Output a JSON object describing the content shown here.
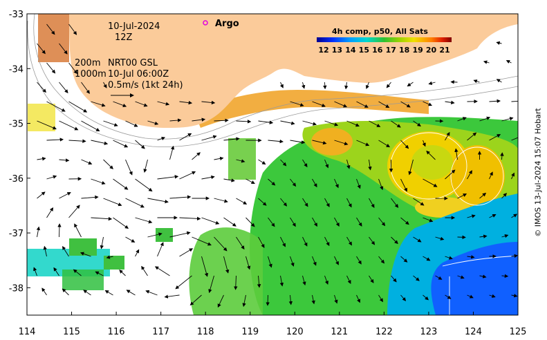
{
  "map": {
    "date_label": "10-Jul-2024",
    "time_label": "12Z",
    "argo_label": "Argo",
    "depth_label_1": "200m",
    "depth_label_2": "1000m",
    "product_label": "NRT00 GSL",
    "product_time": "10-Jul 06:00Z",
    "scale_label": "0.5m/s (1kt 24h)",
    "credit": "© IMOS 13-Jul-2024 15:07 Hobart",
    "lon_ticks": [
      "114",
      "115",
      "116",
      "117",
      "118",
      "119",
      "120",
      "121",
      "122",
      "123",
      "124",
      "125"
    ],
    "lat_ticks": [
      "-33",
      "-34",
      "-35",
      "-36",
      "-37",
      "-38"
    ],
    "land_color": "#fbcb9a",
    "extent": {
      "lon": [
        114,
        125
      ],
      "lat": [
        -38.5,
        -33
      ]
    }
  },
  "colorbar": {
    "title": "4h comp, p50, All Sats",
    "ticks": [
      "12",
      "13",
      "14",
      "15",
      "16",
      "17",
      "18",
      "19",
      "20",
      "21"
    ],
    "colors": [
      "#00008f",
      "#0030ff",
      "#00a0ff",
      "#00e0d0",
      "#20c040",
      "#90d000",
      "#f0e000",
      "#ff9000",
      "#e03000",
      "#8f0000"
    ]
  }
}
